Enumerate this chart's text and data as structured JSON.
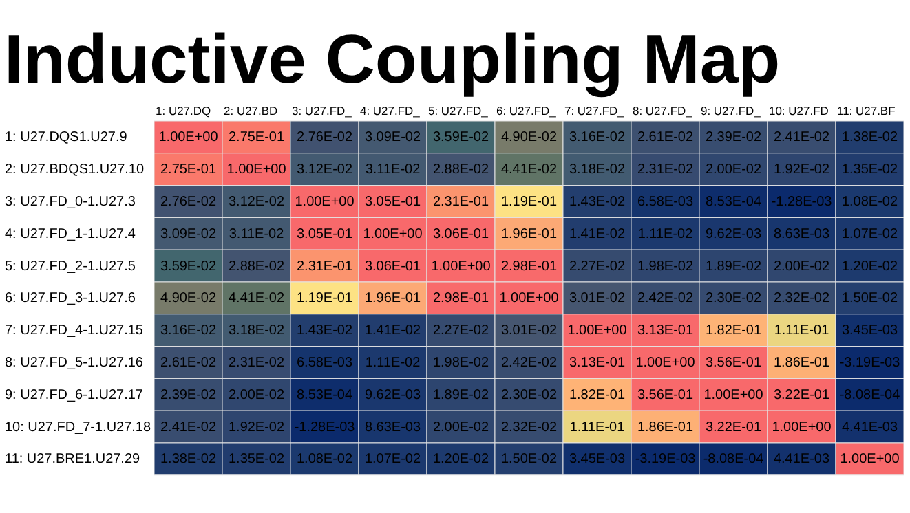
{
  "chart_data": {
    "type": "heatmap",
    "title": "Inductive Coupling Map",
    "categories": [
      "1: U27.DQ",
      "2: U27.BD",
      "3: U27.FD_",
      "4: U27.FD_",
      "5: U27.FD_",
      "6: U27.FD_",
      "7: U27.FD_",
      "8: U27.FD_",
      "9: U27.FD_",
      "10: U27.FD",
      "11: U27.BF"
    ],
    "y_categories": [
      "1: U27.DQS1.U27.9",
      "2: U27.BDQS1.U27.10",
      "3: U27.FD_0-1.U27.3",
      "4: U27.FD_1-1.U27.4",
      "5: U27.FD_2-1.U27.5",
      "6: U27.FD_3-1.U27.6",
      "7: U27.FD_4-1.U27.15",
      "8: U27.FD_5-1.U27.16",
      "9: U27.FD_6-1.U27.17",
      "10: U27.FD_7-1.U27.18",
      "11: U27.BRE1.U27.29"
    ],
    "cells": [
      [
        1.0,
        0.275,
        0.0276,
        0.0309,
        0.0359,
        0.049,
        0.0316,
        0.0261,
        0.0239,
        0.0241,
        0.0138
      ],
      [
        0.275,
        1.0,
        0.0312,
        0.0311,
        0.0288,
        0.0441,
        0.0318,
        0.0231,
        0.02,
        0.0192,
        0.0135
      ],
      [
        0.0276,
        0.0312,
        1.0,
        0.305,
        0.231,
        0.119,
        0.0143,
        0.00658,
        0.000853,
        -0.00128,
        0.0108
      ],
      [
        0.0309,
        0.0311,
        0.305,
        1.0,
        0.306,
        0.196,
        0.0141,
        0.0111,
        0.00962,
        0.00863,
        0.0107
      ],
      [
        0.0359,
        0.0288,
        0.231,
        0.306,
        1.0,
        0.298,
        0.0227,
        0.0198,
        0.0189,
        0.02,
        0.012
      ],
      [
        0.049,
        0.0441,
        0.119,
        0.196,
        0.298,
        1.0,
        0.0301,
        0.0242,
        0.023,
        0.0232,
        0.015
      ],
      [
        0.0316,
        0.0318,
        0.0143,
        0.0141,
        0.0227,
        0.0301,
        1.0,
        0.313,
        0.182,
        0.111,
        0.00345
      ],
      [
        0.0261,
        0.0231,
        0.00658,
        0.0111,
        0.0198,
        0.0242,
        0.313,
        1.0,
        0.356,
        0.186,
        -0.00319
      ],
      [
        0.0239,
        0.02,
        0.000853,
        0.00962,
        0.0189,
        0.023,
        0.182,
        0.356,
        1.0,
        0.322,
        -0.000808
      ],
      [
        0.0241,
        0.0192,
        -0.00128,
        0.00863,
        0.02,
        0.0232,
        0.111,
        0.186,
        0.322,
        1.0,
        0.00441
      ],
      [
        0.0138,
        0.0135,
        0.0108,
        0.0107,
        0.012,
        0.015,
        0.00345,
        -0.00319,
        -0.000808,
        0.00441,
        1.0
      ]
    ],
    "cell_labels": [
      [
        "1.00E+00",
        "2.75E-01",
        "2.76E-02",
        "3.09E-02",
        "3.59E-02",
        "4.90E-02",
        "3.16E-02",
        "2.61E-02",
        "2.39E-02",
        "2.41E-02",
        "1.38E-02"
      ],
      [
        "2.75E-01",
        "1.00E+00",
        "3.12E-02",
        "3.11E-02",
        "2.88E-02",
        "4.41E-02",
        "3.18E-02",
        "2.31E-02",
        "2.00E-02",
        "1.92E-02",
        "1.35E-02"
      ],
      [
        "2.76E-02",
        "3.12E-02",
        "1.00E+00",
        "3.05E-01",
        "2.31E-01",
        "1.19E-01",
        "1.43E-02",
        "6.58E-03",
        "8.53E-04",
        "-1.28E-03",
        "1.08E-02"
      ],
      [
        "3.09E-02",
        "3.11E-02",
        "3.05E-01",
        "1.00E+00",
        "3.06E-01",
        "1.96E-01",
        "1.41E-02",
        "1.11E-02",
        "9.62E-03",
        "8.63E-03",
        "1.07E-02"
      ],
      [
        "3.59E-02",
        "2.88E-02",
        "2.31E-01",
        "3.06E-01",
        "1.00E+00",
        "2.98E-01",
        "2.27E-02",
        "1.98E-02",
        "1.89E-02",
        "2.00E-02",
        "1.20E-02"
      ],
      [
        "4.90E-02",
        "4.41E-02",
        "1.19E-01",
        "1.96E-01",
        "2.98E-01",
        "1.00E+00",
        "3.01E-02",
        "2.42E-02",
        "2.30E-02",
        "2.32E-02",
        "1.50E-02"
      ],
      [
        "3.16E-02",
        "3.18E-02",
        "1.43E-02",
        "1.41E-02",
        "2.27E-02",
        "3.01E-02",
        "1.00E+00",
        "3.13E-01",
        "1.82E-01",
        "1.11E-01",
        "3.45E-03"
      ],
      [
        "2.61E-02",
        "2.31E-02",
        "6.58E-03",
        "1.11E-02",
        "1.98E-02",
        "2.42E-02",
        "3.13E-01",
        "1.00E+00",
        "3.56E-01",
        "1.86E-01",
        "-3.19E-03"
      ],
      [
        "2.39E-02",
        "2.00E-02",
        "8.53E-04",
        "9.62E-03",
        "1.89E-02",
        "2.30E-02",
        "1.82E-01",
        "3.56E-01",
        "1.00E+00",
        "3.22E-01",
        "-8.08E-04"
      ],
      [
        "2.41E-02",
        "1.92E-02",
        "-1.28E-03",
        "8.63E-03",
        "2.00E-02",
        "2.32E-02",
        "1.11E-01",
        "1.86E-01",
        "3.22E-01",
        "1.00E+00",
        "4.41E-03"
      ],
      [
        "1.38E-02",
        "1.35E-02",
        "1.08E-02",
        "1.07E-02",
        "1.20E-02",
        "1.50E-02",
        "3.45E-03",
        "-3.19E-03",
        "-8.08E-04",
        "4.41E-03",
        "1.00E+00"
      ]
    ]
  }
}
